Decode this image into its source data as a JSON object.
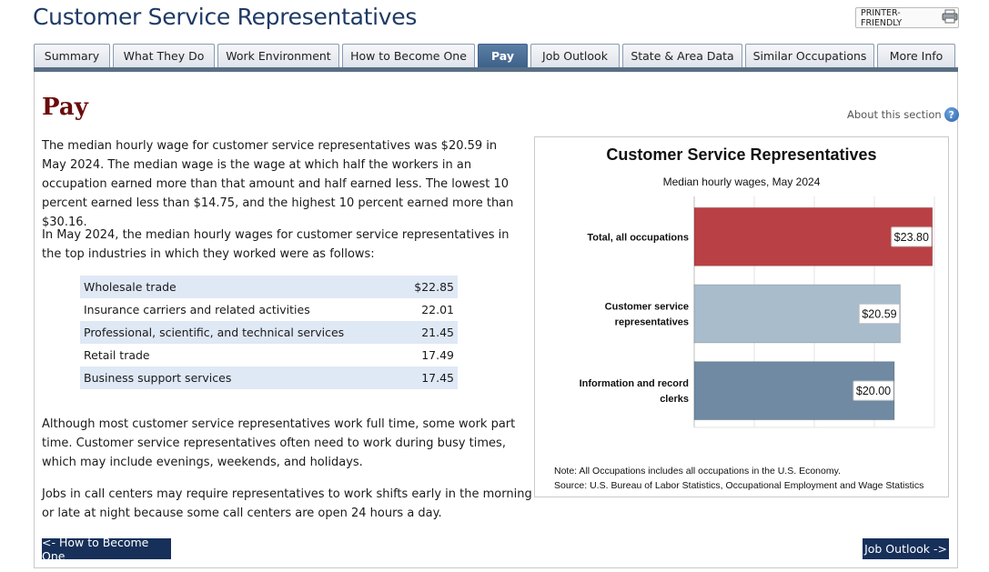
{
  "page": {
    "title": "Customer Service Representatives",
    "printer_friendly": "PRINTER-FRIENDLY"
  },
  "tabs": [
    {
      "label": "Summary",
      "active": false
    },
    {
      "label": "What They Do",
      "active": false
    },
    {
      "label": "Work Environment",
      "active": false
    },
    {
      "label": "How to Become One",
      "active": false
    },
    {
      "label": "Pay",
      "active": true
    },
    {
      "label": "Job Outlook",
      "active": false
    },
    {
      "label": "State & Area Data",
      "active": false
    },
    {
      "label": "Similar Occupations",
      "active": false
    },
    {
      "label": "More Info",
      "active": false
    }
  ],
  "section": {
    "heading": "Pay",
    "about_link": "About this section",
    "paragraphs": [
      "The median hourly wage for customer service representatives was $20.59 in May 2024. The median wage is the wage at which half the workers in an occupation earned more than that amount and half earned less. The lowest 10 percent earned less than $14.75, and the highest 10 percent earned more than $30.16.",
      "In May 2024, the median hourly wages for customer service representatives in the top industries in which they worked were as follows:",
      "Although most customer service representatives work full time, some work part time. Customer service representatives often need to work during busy times, which may include evenings, weekends, and holidays.",
      "Jobs in call centers may require representatives to work shifts early in the morning or late at night because some call centers are open 24 hours a day."
    ],
    "industries": [
      {
        "name": "Wholesale trade",
        "wage": "$22.85"
      },
      {
        "name": "Insurance carriers and related activities",
        "wage": "22.01"
      },
      {
        "name": "Professional, scientific, and technical services",
        "wage": "21.45"
      },
      {
        "name": "Retail trade",
        "wage": "17.49"
      },
      {
        "name": "Business support services",
        "wage": "17.45"
      }
    ]
  },
  "chart_data": {
    "type": "bar",
    "orientation": "horizontal",
    "title": "Customer Service Representatives",
    "subtitle": "Median hourly wages, May 2024",
    "categories": [
      [
        "Total, all occupations"
      ],
      [
        "Customer service",
        "representatives"
      ],
      [
        "Information and record",
        "clerks"
      ]
    ],
    "values": [
      23.8,
      20.59,
      20.0
    ],
    "value_labels": [
      "$23.80",
      "$20.59",
      "$20.00"
    ],
    "colors": [
      "#b94145",
      "#a9bccb",
      "#6f8aa2"
    ],
    "xlim": [
      0,
      24
    ],
    "grid": true,
    "note": "Note: All Occupations includes all occupations in the U.S. Economy.",
    "source": "Source: U.S. Bureau of Labor Statistics, Occupational Employment and Wage Statistics"
  },
  "nav": {
    "prev": "<- How to Become One",
    "next": "Job Outlook ->"
  }
}
